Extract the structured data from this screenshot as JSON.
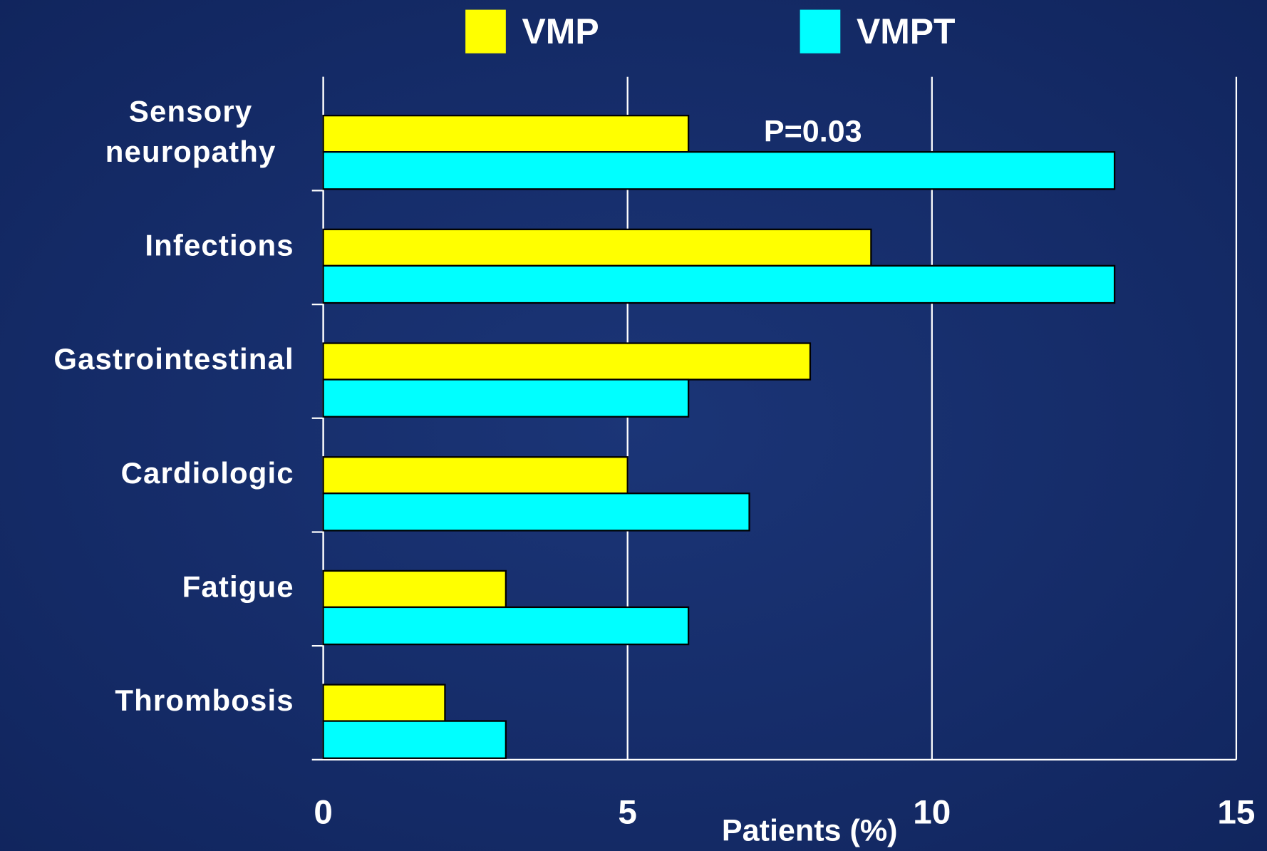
{
  "chart_data": {
    "type": "bar",
    "orientation": "horizontal",
    "categories": [
      "Sensory neuropathy",
      "Infections",
      "Gastrointestinal",
      "Cardiologic",
      "Fatigue",
      "Thrombosis"
    ],
    "series": [
      {
        "name": "VMP",
        "color": "#ffff00",
        "values": [
          6,
          9,
          8,
          5,
          3,
          2
        ]
      },
      {
        "name": "VMPT",
        "color": "#00ffff",
        "values": [
          13,
          13,
          6,
          7,
          6,
          3
        ]
      }
    ],
    "xlim": [
      0,
      15
    ],
    "xticks": [
      0,
      5,
      10,
      15
    ],
    "x_label": "Patients (%)",
    "annotation": "P=0.03",
    "grid": true,
    "legend": "top"
  }
}
